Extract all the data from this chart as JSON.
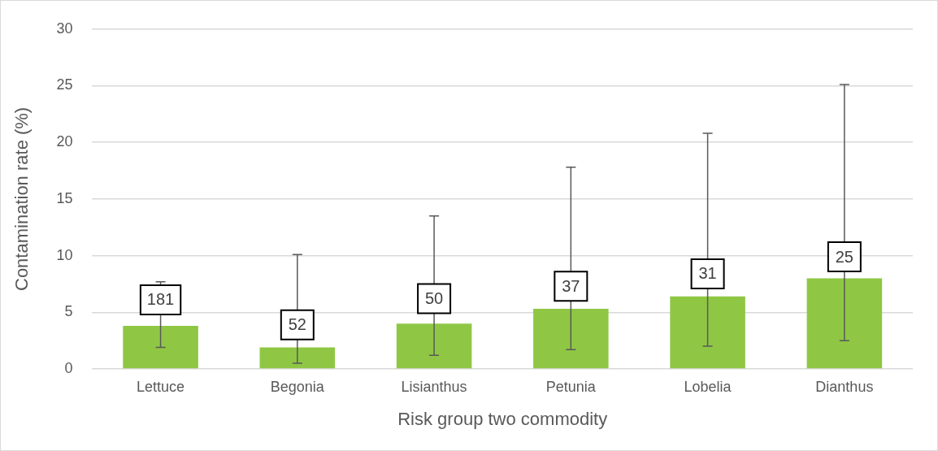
{
  "chart_data": {
    "type": "bar",
    "xlabel": "Risk group two commodity",
    "ylabel": "Contamination rate (%)",
    "categories": [
      "Lettuce",
      "Begonia",
      "Lisianthus",
      "Petunia",
      "Lobelia",
      "Dianthus"
    ],
    "values": [
      3.8,
      1.9,
      4.0,
      5.3,
      6.4,
      8.0
    ],
    "color": "#8fc744",
    "errors": [
      [
        1.9,
        7.7
      ],
      [
        0.5,
        10.1
      ],
      [
        1.2,
        13.5
      ],
      [
        1.7,
        17.8
      ],
      [
        2.0,
        20.8
      ],
      [
        2.5,
        25.1
      ]
    ],
    "ylim": [
      0,
      30
    ],
    "yticks": [
      0,
      5,
      10,
      15,
      20,
      25,
      30
    ],
    "grid": "y",
    "annotations": [
      {
        "text": "181",
        "x": "Lettuce",
        "y": 6.1
      },
      {
        "text": "52",
        "x": "Begonia",
        "y": 3.9
      },
      {
        "text": "50",
        "x": "Lisianthus",
        "y": 6.2
      },
      {
        "text": "37",
        "x": "Petunia",
        "y": 7.3
      },
      {
        "text": "31",
        "x": "Lobelia",
        "y": 8.4
      },
      {
        "text": "25",
        "x": "Dianthus",
        "y": 9.9
      }
    ]
  }
}
